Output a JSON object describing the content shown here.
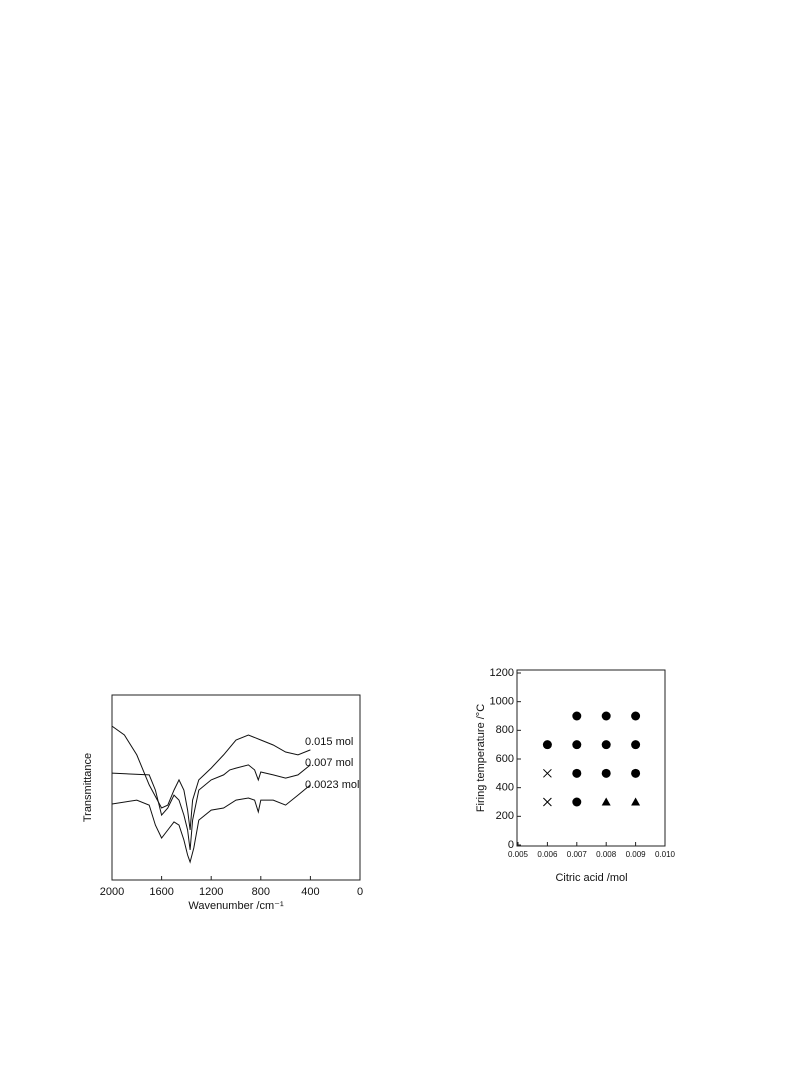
{
  "chart_data": [
    {
      "type": "line",
      "xlabel": "Wavenumber  /cm⁻¹",
      "ylabel": "Transmittance",
      "xlim": [
        2000,
        0
      ],
      "xticks": [
        2000,
        1600,
        1200,
        800,
        400,
        0
      ],
      "ylim": [
        0,
        100
      ],
      "series": [
        {
          "name": "0.015 mol",
          "color": "#111111",
          "x": [
            2000,
            1900,
            1800,
            1700,
            1600,
            1550,
            1500,
            1460,
            1420,
            1390,
            1370,
            1350,
            1300,
            1200,
            1100,
            1000,
            900,
            800,
            700,
            600,
            500,
            400
          ],
          "values": [
            83.2,
            78.4,
            67.6,
            51.4,
            38.9,
            40.5,
            48.6,
            54.1,
            48.6,
            37.8,
            27.0,
            43.2,
            54.1,
            60.5,
            67.6,
            75.7,
            78.4,
            75.7,
            73.0,
            69.2,
            67.6,
            70.3
          ]
        },
        {
          "name": "0.007 mol",
          "color": "#111111",
          "x": [
            2000,
            1700,
            1650,
            1600,
            1550,
            1500,
            1460,
            1420,
            1390,
            1370,
            1350,
            1300,
            1200,
            1100,
            1050,
            1000,
            900,
            850,
            820,
            800,
            700,
            600,
            500,
            400
          ],
          "values": [
            57.8,
            56.8,
            48.6,
            35.1,
            38.9,
            45.9,
            43.2,
            35.1,
            27.0,
            16.2,
            32.4,
            48.6,
            54.1,
            56.8,
            59.5,
            60.5,
            62.2,
            59.5,
            54.1,
            58.4,
            56.8,
            55.1,
            56.8,
            62.2
          ]
        },
        {
          "name": "0.0023 mol",
          "color": "#111111",
          "x": [
            2000,
            1800,
            1700,
            1650,
            1600,
            1550,
            1500,
            1460,
            1420,
            1390,
            1370,
            1340,
            1300,
            1200,
            1100,
            1000,
            900,
            850,
            820,
            800,
            700,
            600,
            500,
            400
          ],
          "values": [
            41.1,
            43.2,
            40.5,
            29.7,
            22.7,
            27.0,
            31.4,
            29.7,
            21.6,
            13.5,
            9.7,
            17.3,
            32.4,
            37.8,
            38.9,
            43.2,
            44.3,
            43.2,
            36.8,
            43.2,
            43.2,
            40.5,
            45.9,
            51.4
          ]
        }
      ]
    },
    {
      "type": "scatter",
      "xlabel": "Citric acid  /mol",
      "ylabel": "Firing temperature /°C",
      "xlim": [
        0.005,
        0.01
      ],
      "xticks": [
        0.005,
        0.006,
        0.007,
        0.008,
        0.009,
        {
          "value": 0.01,
          "label": "0.010"
        }
      ],
      "ylim": [
        0,
        1200
      ],
      "yticks": [
        0,
        200,
        400,
        600,
        800,
        1000,
        1200
      ],
      "series": [
        {
          "marker": "circle",
          "color": "#000000",
          "x": [
            0.006,
            0.007,
            0.008,
            0.009,
            0.007,
            0.008,
            0.009,
            0.007,
            0.008,
            0.009,
            0.007
          ],
          "values": [
            700,
            900,
            900,
            900,
            700,
            700,
            700,
            500,
            500,
            500,
            300
          ]
        },
        {
          "marker": "triangle",
          "color": "#000000",
          "x": [
            0.008,
            0.009
          ],
          "values": [
            300,
            300
          ]
        },
        {
          "marker": "cross",
          "color": "#000000",
          "x": [
            0.006,
            0.006
          ],
          "values": [
            500,
            300
          ]
        }
      ]
    }
  ]
}
